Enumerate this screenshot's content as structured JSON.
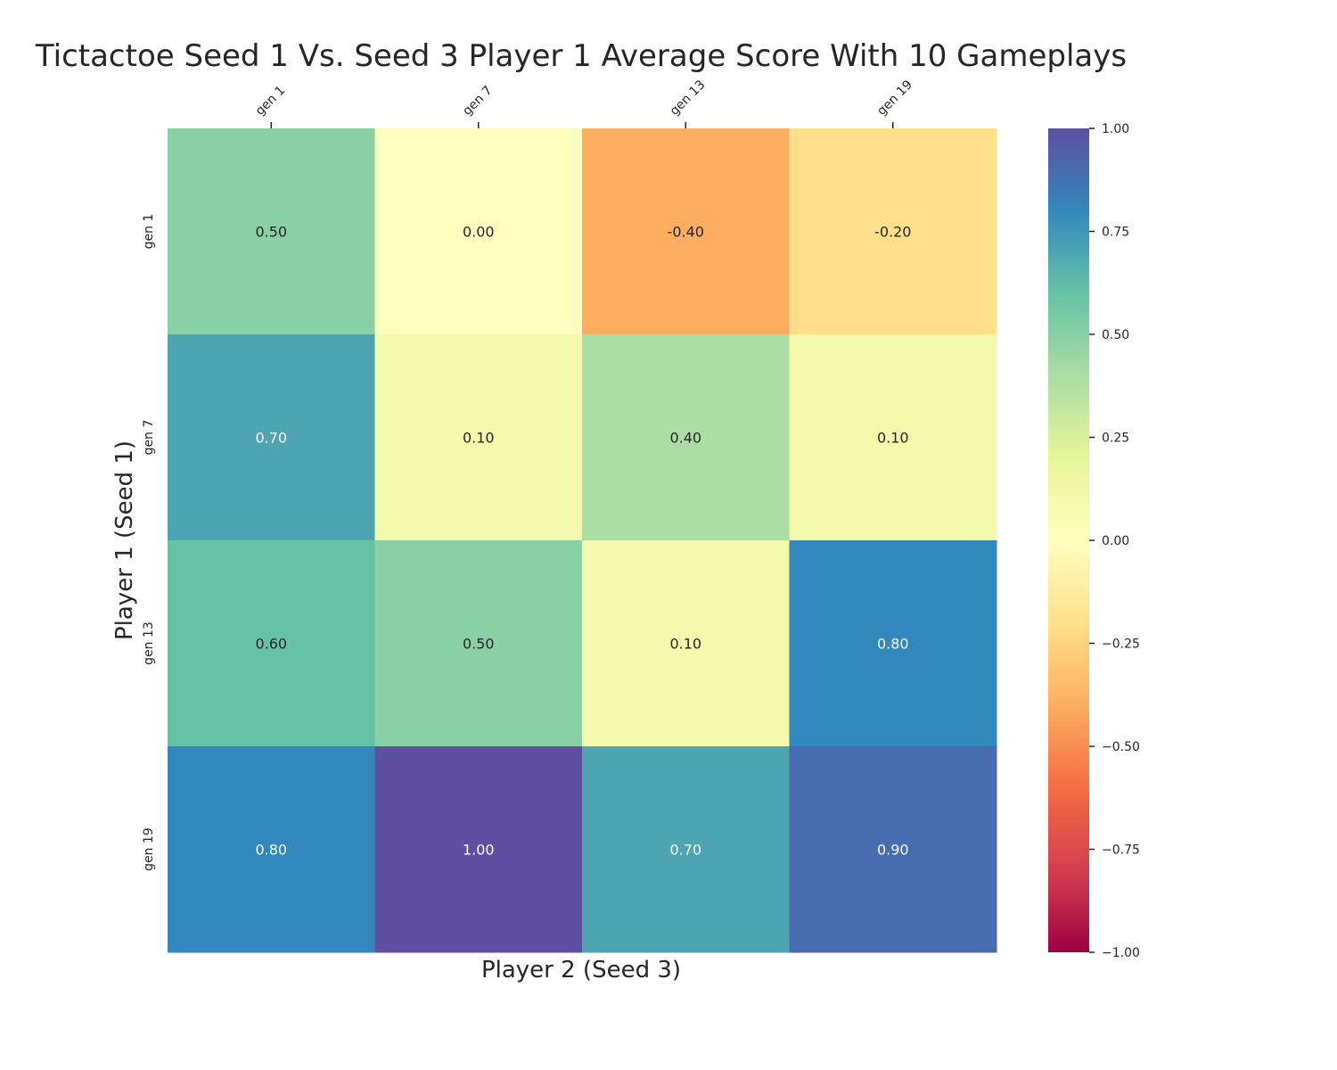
{
  "chart_data": {
    "type": "heatmap",
    "title": "Tictactoe Seed 1 Vs. Seed 3 Player 1 Average Score With 10 Gameplays",
    "xlabel": "Player 2 (Seed 3)",
    "ylabel": "Player 1 (Seed 1)",
    "x_categories": [
      "gen 1",
      "gen 7",
      "gen 13",
      "gen 19"
    ],
    "y_categories": [
      "gen 1",
      "gen 7",
      "gen 13",
      "gen 19"
    ],
    "values": [
      [
        0.5,
        0.0,
        -0.4,
        -0.2
      ],
      [
        0.7,
        0.1,
        0.4,
        0.1
      ],
      [
        0.6,
        0.5,
        0.1,
        0.8
      ],
      [
        0.8,
        1.0,
        0.7,
        0.9
      ]
    ],
    "value_labels": [
      [
        "0.50",
        "0.00",
        "-0.40",
        "-0.20"
      ],
      [
        "0.70",
        "0.10",
        "0.40",
        "0.10"
      ],
      [
        "0.60",
        "0.50",
        "0.10",
        "0.80"
      ],
      [
        "0.80",
        "1.00",
        "0.70",
        "0.90"
      ]
    ],
    "x_axis_position": "top",
    "colormap": "Spectral",
    "colormap_stops": [
      "#9e0142",
      "#d53e4f",
      "#f46d43",
      "#fdae61",
      "#fee08b",
      "#ffffbf",
      "#e6f598",
      "#abdda4",
      "#66c2a5",
      "#3288bd",
      "#5e4fa2"
    ],
    "vmin": -1.0,
    "vmax": 1.0,
    "colorbar": {
      "ticks": [
        1.0,
        0.75,
        0.5,
        0.25,
        0.0,
        -0.25,
        -0.5,
        -0.75,
        -1.0
      ],
      "tick_labels": [
        "1.00",
        "0.75",
        "0.50",
        "0.25",
        "0.00",
        "−0.25",
        "−0.50",
        "−0.75",
        "−1.00"
      ]
    },
    "grid": false
  }
}
